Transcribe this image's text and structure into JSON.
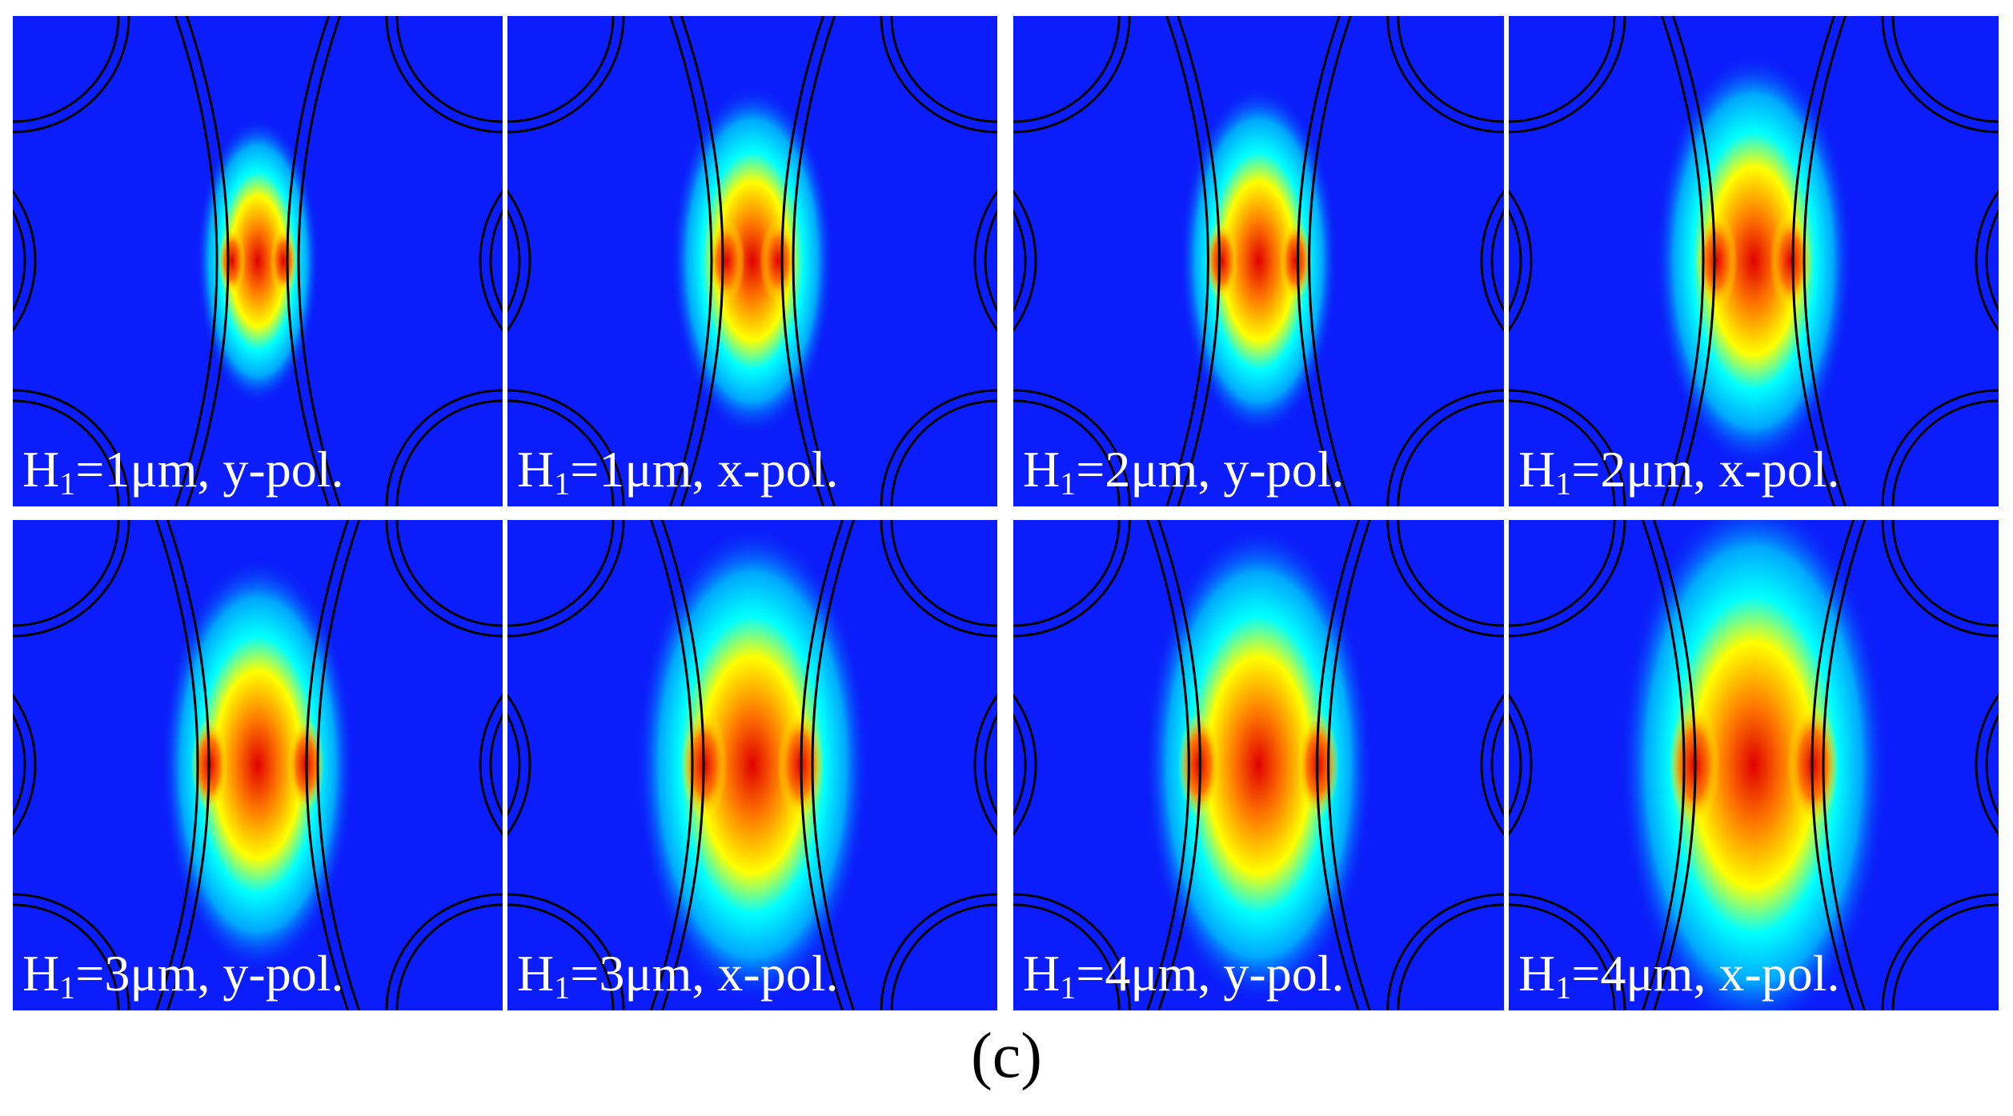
{
  "figure": {
    "caption": "(c)",
    "colors": {
      "background": "#0b1dfa",
      "ring_line": "#000000",
      "label_text": "#ffffff",
      "colormap": [
        "#0b1dfa",
        "#00a8ff",
        "#00ffff",
        "#ffff00",
        "#ff7a00",
        "#e00000"
      ]
    },
    "panels": [
      {
        "h_prefix": "H",
        "h_index": "1",
        "rest": "=1μm, y-pol.",
        "H1_um": 1,
        "polarization": "y"
      },
      {
        "h_prefix": "H",
        "h_index": "1",
        "rest": "=1μm, x-pol.",
        "H1_um": 1,
        "polarization": "x"
      },
      {
        "h_prefix": "H",
        "h_index": "1",
        "rest": "=2μm, y-pol.",
        "H1_um": 2,
        "polarization": "y"
      },
      {
        "h_prefix": "H",
        "h_index": "1",
        "rest": "=2μm, x-pol.",
        "H1_um": 2,
        "polarization": "x"
      },
      {
        "h_prefix": "H",
        "h_index": "1",
        "rest": "=3μm, y-pol.",
        "H1_um": 3,
        "polarization": "y"
      },
      {
        "h_prefix": "H",
        "h_index": "1",
        "rest": "=3μm, x-pol.",
        "H1_um": 3,
        "polarization": "x"
      },
      {
        "h_prefix": "H",
        "h_index": "1",
        "rest": "=4μm, y-pol.",
        "H1_um": 4,
        "polarization": "y"
      },
      {
        "h_prefix": "H",
        "h_index": "1",
        "rest": "=4μm, x-pol.",
        "H1_um": 4,
        "polarization": "x"
      }
    ]
  }
}
